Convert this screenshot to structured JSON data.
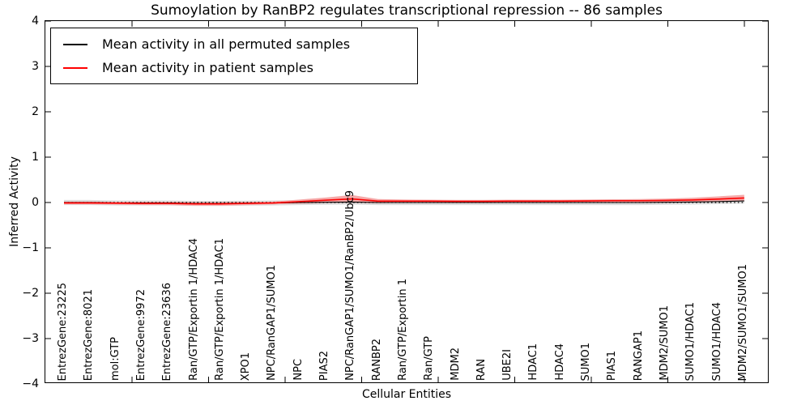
{
  "chart_data": {
    "type": "line",
    "title": "Sumoylation by RanBP2 regulates transcriptional repression -- 86 samples",
    "xlabel": "Cellular Entities",
    "ylabel": "Inferred Activity",
    "ylim": [
      -4,
      4
    ],
    "yticks": [
      4,
      3,
      2,
      1,
      0,
      -1,
      -2,
      -3,
      -4
    ],
    "ytick_labels": [
      "4",
      "3",
      "2",
      "1",
      "0",
      "−1",
      "−2",
      "−3",
      "−4"
    ],
    "grid": false,
    "zero_reference_line": {
      "y": 0,
      "style": "dotted",
      "color": "#000000"
    },
    "legend_position": "upper left",
    "categories": [
      "EntrezGene:23225",
      "EntrezGene:8021",
      "mol:GTP",
      "EntrezGene:9972",
      "EntrezGene:23636",
      "Ran/GTP/Exportin 1/HDAC4",
      "Ran/GTP/Exportin 1/HDAC1",
      "XPO1",
      "NPC/RanGAP1/SUMO1",
      "NPC",
      "PIAS2",
      "NPC/RanGAP1/SUMO1/RanBP2/Ubc9",
      "RANBP2",
      "Ran/GTP/Exportin 1",
      "Ran/GTP",
      "MDM2",
      "RAN",
      "UBE2I",
      "HDAC1",
      "HDAC4",
      "SUMO1",
      "PIAS1",
      "RANGAP1",
      "MDM2/SUMO1",
      "SUMO1/HDAC1",
      "SUMO1/HDAC4",
      "MDM2/SUMO1/SUMO1"
    ],
    "series": [
      {
        "name": "Mean activity in all permuted samples",
        "color": "#000000",
        "style": "solid",
        "values": [
          0.0,
          0.0,
          -0.01,
          -0.01,
          -0.01,
          -0.02,
          -0.02,
          -0.015,
          -0.01,
          0.0,
          0.005,
          0.01,
          0.0,
          0.0,
          0.0,
          0.0,
          0.0,
          0.0,
          0.0,
          0.0,
          0.0,
          0.0,
          0.0,
          0.005,
          0.01,
          0.02,
          0.035
        ],
        "band_color": "#dcdcdc",
        "band_half_widths": [
          0.055,
          0.055,
          0.055,
          0.055,
          0.055,
          0.055,
          0.055,
          0.055,
          0.055,
          0.055,
          0.055,
          0.055,
          0.055,
          0.055,
          0.055,
          0.055,
          0.055,
          0.055,
          0.055,
          0.055,
          0.055,
          0.055,
          0.055,
          0.055,
          0.055,
          0.055,
          0.055
        ]
      },
      {
        "name": "Mean activity in patient samples",
        "color": "#ff0000",
        "style": "solid",
        "values": [
          -0.01,
          -0.01,
          -0.015,
          -0.02,
          -0.02,
          -0.03,
          -0.03,
          -0.02,
          -0.01,
          0.02,
          0.05,
          0.08,
          0.03,
          0.03,
          0.03,
          0.025,
          0.025,
          0.03,
          0.03,
          0.03,
          0.035,
          0.04,
          0.04,
          0.045,
          0.055,
          0.075,
          0.1
        ],
        "band_color": "#f5a9a9",
        "band_half_widths": [
          0.03,
          0.03,
          0.03,
          0.035,
          0.035,
          0.04,
          0.04,
          0.035,
          0.03,
          0.045,
          0.06,
          0.085,
          0.045,
          0.035,
          0.03,
          0.03,
          0.03,
          0.03,
          0.03,
          0.03,
          0.03,
          0.032,
          0.035,
          0.04,
          0.05,
          0.06,
          0.07
        ]
      }
    ]
  },
  "colors": {
    "axis": "#000000",
    "background": "#ffffff",
    "permuted_line": "#000000",
    "patient_line": "#ff0000",
    "permuted_band": "#dcdcdc",
    "patient_band": "#f5a9a9"
  }
}
